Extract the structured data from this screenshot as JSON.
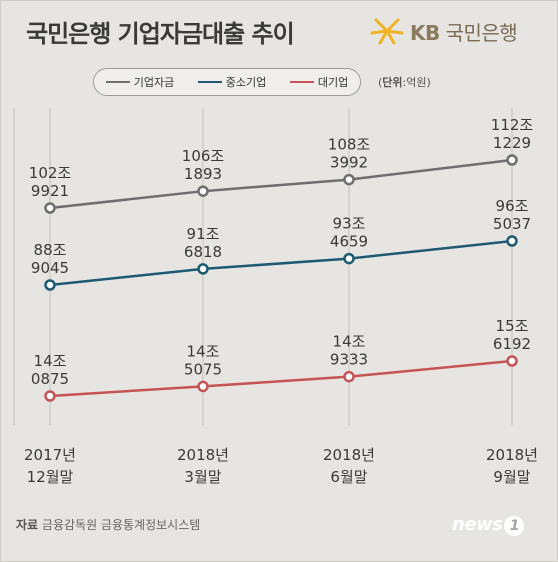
{
  "header": {
    "title": "국민은행 기업자금대출 추이",
    "logo_mark": "KB",
    "logo_text": "국민은행"
  },
  "unit": {
    "label": "단위",
    "value": ":억원"
  },
  "source": {
    "label": "자료",
    "text": "금융감독원 금융통계정보시스템"
  },
  "watermark": {
    "text": "news",
    "mark": "1"
  },
  "colors": {
    "gray": "#6e6e6e",
    "blue": "#1d5a72",
    "red": "#c65454",
    "logo_yellow": "#f0b323"
  },
  "chart_data": {
    "type": "line",
    "categories": [
      [
        "2017년",
        "12월말"
      ],
      [
        "2018년",
        "3월말"
      ],
      [
        "2018년",
        "6월말"
      ],
      [
        "2018년",
        "9월말"
      ]
    ],
    "series": [
      {
        "name": "기업자금",
        "color": "#6e6e6e",
        "values": [
          1029921,
          1061893,
          1083992,
          1121229
        ],
        "labels": [
          [
            "102조",
            "9921"
          ],
          [
            "106조",
            "1893"
          ],
          [
            "108조",
            "3992"
          ],
          [
            "112조",
            "1229"
          ]
        ]
      },
      {
        "name": "중소기업",
        "color": "#1d5a72",
        "values": [
          889045,
          916818,
          934659,
          965037
        ],
        "labels": [
          [
            "88조",
            "9045"
          ],
          [
            "91조",
            "6818"
          ],
          [
            "93조",
            "4659"
          ],
          [
            "96조",
            "5037"
          ]
        ]
      },
      {
        "name": "대기업",
        "color": "#c65454",
        "values": [
          140875,
          145075,
          149333,
          156192
        ],
        "labels": [
          [
            "14조",
            "0875"
          ],
          [
            "14조",
            "5075"
          ],
          [
            "14조",
            "9333"
          ],
          [
            "15조",
            "6192"
          ]
        ]
      }
    ]
  }
}
